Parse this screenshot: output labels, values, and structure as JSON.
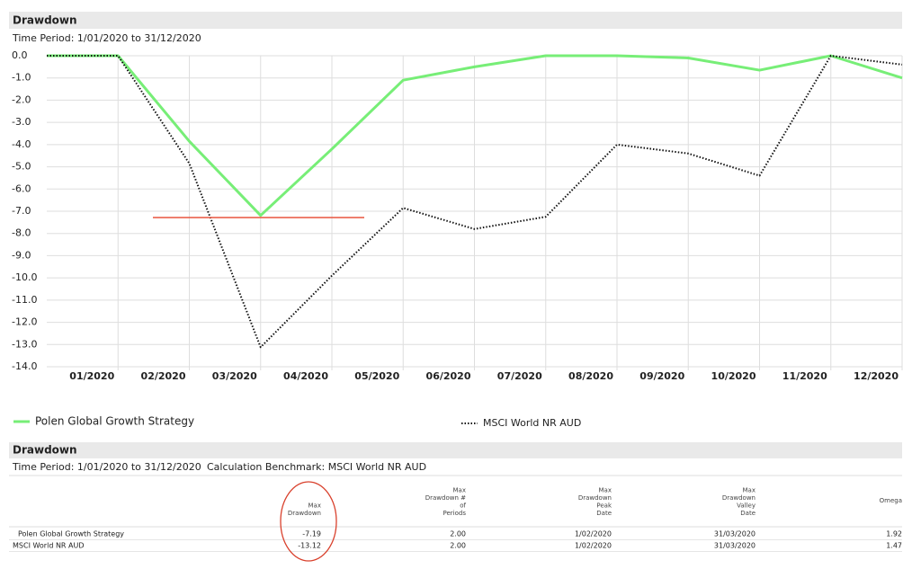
{
  "chart_data": {
    "type": "line",
    "title": "Drawdown",
    "subtitle": "Time Period: 1/01/2020 to 31/12/2020",
    "categories": [
      null,
      "01/2020",
      "02/2020",
      "03/2020",
      "04/2020",
      "05/2020",
      "06/2020",
      "07/2020",
      "08/2020",
      "09/2020",
      "10/2020",
      "11/2020",
      "12/2020"
    ],
    "series": [
      {
        "name": "Polen Global Growth Strategy",
        "color": "#77ee77",
        "style": "solid",
        "values": [
          0,
          0,
          -3.85,
          -7.19,
          -4.2,
          -1.1,
          -0.5,
          0,
          0,
          -0.1,
          -0.65,
          0,
          -1.0
        ]
      },
      {
        "name": "MSCI World NR AUD",
        "color": "#111111",
        "style": "dotted",
        "values": [
          0,
          0,
          -4.85,
          -13.12,
          -9.9,
          -6.85,
          -7.8,
          -7.25,
          -4.0,
          -4.4,
          -5.4,
          0,
          -0.4
        ]
      }
    ],
    "ylim": [
      -14,
      0
    ],
    "yticks": [
      {
        "value": 0,
        "label": "0.0"
      },
      {
        "value": -1,
        "label": "-1.0"
      },
      {
        "value": -2,
        "label": "-2.0"
      },
      {
        "value": -3,
        "label": "-3.0"
      },
      {
        "value": -4,
        "label": "-4.0"
      },
      {
        "value": -5,
        "label": "-5.0"
      },
      {
        "value": -6,
        "label": "-6.0"
      },
      {
        "value": -7,
        "label": "-7.0"
      },
      {
        "value": -8,
        "label": "-8.0"
      },
      {
        "value": -9,
        "label": "-9.0"
      },
      {
        "value": -10,
        "label": "-10.0"
      },
      {
        "value": -11,
        "label": "-11.0"
      },
      {
        "value": -12,
        "label": "-12.0"
      },
      {
        "value": -13,
        "label": "-13.0"
      },
      {
        "value": -14,
        "label": "-14.0"
      }
    ],
    "grid": true
  },
  "table": {
    "title": "Drawdown",
    "period": "Time Period: 1/01/2020 to 31/12/2020",
    "benchmark": "Calculation Benchmark: MSCI World NR AUD",
    "columns": [
      [
        "Max",
        "Drawdown"
      ],
      [
        "Max",
        "Drawdown #",
        "of",
        "Periods"
      ],
      [
        "Max",
        "Drawdown",
        "Peak",
        "Date"
      ],
      [
        "Max",
        "Drawdown",
        "Valley",
        "Date"
      ],
      [
        "Omega"
      ]
    ],
    "rows": [
      [
        "Polen Global Growth Strategy",
        "-7.19",
        "2.00",
        "1/02/2020",
        "31/03/2020",
        "1.92"
      ],
      [
        "MSCI World NR AUD",
        "-13.12",
        "2.00",
        "1/02/2020",
        "31/03/2020",
        "1.47"
      ]
    ]
  }
}
